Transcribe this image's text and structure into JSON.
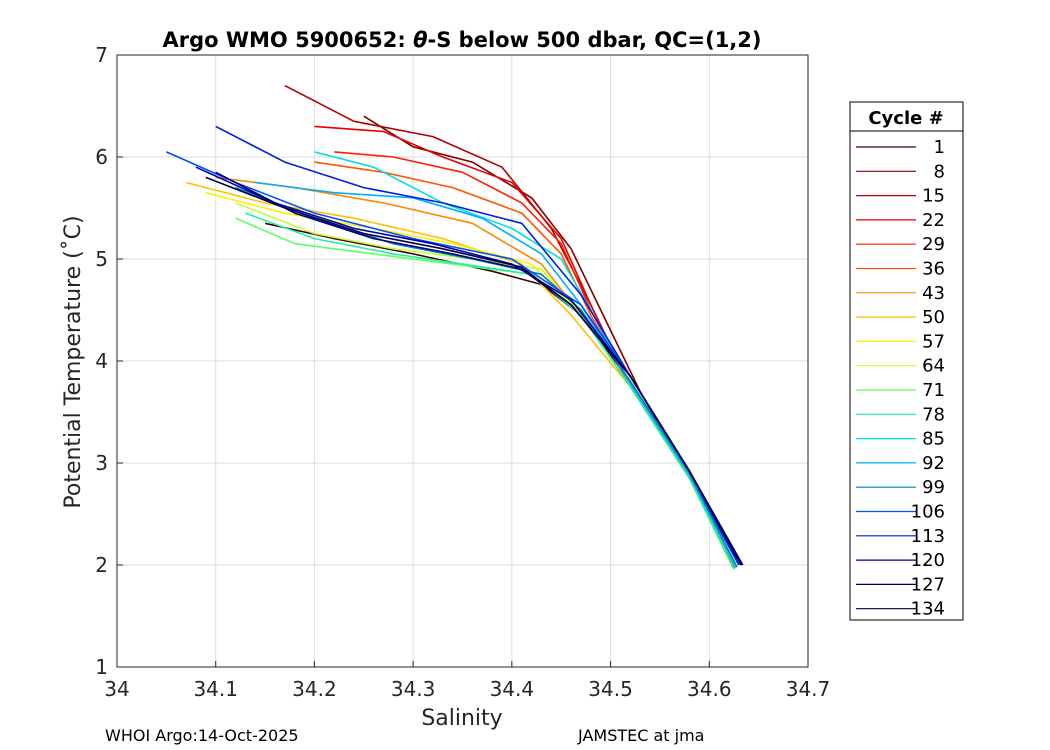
{
  "chart_data": {
    "type": "line",
    "title_prefix": "Argo WMO 5900652: ",
    "title_theta": "θ",
    "title_suffix": "-S below 500 dbar,  QC=(1,2)",
    "xlabel": "Salinity",
    "ylabel": "Potential Temperature (˚C)",
    "xlim": [
      34.0,
      34.7
    ],
    "ylim": [
      1,
      7
    ],
    "xticks": [
      "34",
      "34.1",
      "34.2",
      "34.3",
      "34.4",
      "34.5",
      "34.6",
      "34.7"
    ],
    "xtick_values": [
      34.0,
      34.1,
      34.2,
      34.3,
      34.4,
      34.5,
      34.6,
      34.7
    ],
    "yticks": [
      "1",
      "2",
      "3",
      "4",
      "5",
      "6",
      "7"
    ],
    "ytick_values": [
      1,
      2,
      3,
      4,
      5,
      6,
      7
    ],
    "grid": true,
    "legend_title": "Cycle #",
    "legend_position": "outside-right",
    "series": [
      {
        "name": "1",
        "color": "#400000",
        "salinity": [
          34.15,
          34.22,
          34.3,
          34.38,
          34.43,
          34.47,
          34.52,
          34.58,
          34.63
        ],
        "theta": [
          5.35,
          5.2,
          5.05,
          4.88,
          4.75,
          4.45,
          3.8,
          2.9,
          2.0
        ]
      },
      {
        "name": "8",
        "color": "#800000",
        "salinity": [
          34.25,
          34.3,
          34.36,
          34.42,
          34.46,
          34.49,
          34.53,
          34.58,
          34.625
        ],
        "theta": [
          6.4,
          6.1,
          5.95,
          5.6,
          5.1,
          4.5,
          3.7,
          2.85,
          1.98
        ]
      },
      {
        "name": "15",
        "color": "#B30000",
        "salinity": [
          34.17,
          34.24,
          34.32,
          34.39,
          34.44,
          34.48,
          34.52,
          34.58,
          34.625
        ],
        "theta": [
          6.7,
          6.35,
          6.2,
          5.9,
          5.3,
          4.55,
          3.75,
          2.85,
          1.97
        ]
      },
      {
        "name": "22",
        "color": "#E60000",
        "salinity": [
          34.2,
          34.27,
          34.33,
          34.4,
          34.45,
          34.48,
          34.52,
          34.58,
          34.625
        ],
        "theta": [
          6.3,
          6.25,
          6.0,
          5.75,
          5.2,
          4.55,
          3.75,
          2.85,
          1.97
        ]
      },
      {
        "name": "29",
        "color": "#FF2000",
        "salinity": [
          34.22,
          34.28,
          34.35,
          34.41,
          34.45,
          34.48,
          34.52,
          34.58,
          34.625
        ],
        "theta": [
          6.05,
          6.0,
          5.85,
          5.55,
          5.15,
          4.5,
          3.75,
          2.85,
          1.97
        ]
      },
      {
        "name": "36",
        "color": "#FF5500",
        "salinity": [
          34.2,
          34.27,
          34.34,
          34.41,
          34.45,
          34.48,
          34.52,
          34.58,
          34.625
        ],
        "theta": [
          5.95,
          5.85,
          5.7,
          5.45,
          5.05,
          4.45,
          3.75,
          2.85,
          1.96
        ]
      },
      {
        "name": "43",
        "color": "#FF8800",
        "salinity": [
          34.1,
          34.18,
          34.27,
          34.36,
          34.43,
          34.47,
          34.52,
          34.58,
          34.625
        ],
        "theta": [
          5.8,
          5.7,
          5.55,
          5.35,
          4.95,
          4.45,
          3.75,
          2.85,
          1.96
        ]
      },
      {
        "name": "50",
        "color": "#FFC000",
        "salinity": [
          34.07,
          34.15,
          34.24,
          34.33,
          34.41,
          34.46,
          34.52,
          34.58,
          34.625
        ],
        "theta": [
          5.75,
          5.55,
          5.4,
          5.2,
          4.95,
          4.45,
          3.75,
          2.85,
          1.96
        ]
      },
      {
        "name": "57",
        "color": "#FFF000",
        "salinity": [
          34.09,
          34.17,
          34.26,
          34.34,
          34.42,
          34.47,
          34.52,
          34.58,
          34.625
        ],
        "theta": [
          5.65,
          5.45,
          5.3,
          5.15,
          4.95,
          4.45,
          3.75,
          2.85,
          1.96
        ]
      },
      {
        "name": "64",
        "color": "#C0FF30",
        "salinity": [
          34.12,
          34.2,
          34.28,
          34.36,
          34.43,
          34.47,
          34.52,
          34.58,
          34.625
        ],
        "theta": [
          5.55,
          5.25,
          5.1,
          5.0,
          4.9,
          4.45,
          3.75,
          2.85,
          1.96
        ]
      },
      {
        "name": "71",
        "color": "#60FF60",
        "salinity": [
          34.12,
          34.18,
          34.26,
          34.34,
          34.42,
          34.47,
          34.52,
          34.58,
          34.625
        ],
        "theta": [
          5.4,
          5.15,
          5.05,
          4.95,
          4.85,
          4.45,
          3.75,
          2.85,
          1.96
        ]
      },
      {
        "name": "78",
        "color": "#20F0A0",
        "salinity": [
          34.13,
          34.2,
          34.28,
          34.35,
          34.42,
          34.47,
          34.52,
          34.58,
          34.625
        ],
        "theta": [
          5.45,
          5.2,
          5.05,
          4.95,
          4.85,
          4.45,
          3.75,
          2.85,
          1.96
        ]
      },
      {
        "name": "85",
        "color": "#00E0E0",
        "salinity": [
          34.2,
          34.26,
          34.33,
          34.4,
          34.45,
          34.48,
          34.52,
          34.58,
          34.627
        ],
        "theta": [
          6.05,
          5.9,
          5.55,
          5.3,
          5.0,
          4.5,
          3.78,
          2.88,
          1.97
        ]
      },
      {
        "name": "92",
        "color": "#00B0FF",
        "salinity": [
          34.14,
          34.22,
          34.3,
          34.37,
          34.43,
          34.47,
          34.52,
          34.58,
          34.628
        ],
        "theta": [
          5.75,
          5.65,
          5.6,
          5.4,
          5.05,
          4.55,
          3.78,
          2.88,
          1.98
        ]
      },
      {
        "name": "99",
        "color": "#0080C0",
        "salinity": [
          34.12,
          34.2,
          34.28,
          34.36,
          34.43,
          34.47,
          34.52,
          34.58,
          34.628
        ],
        "theta": [
          5.7,
          5.4,
          5.15,
          5.0,
          4.85,
          4.5,
          3.8,
          2.9,
          1.98
        ]
      },
      {
        "name": "106",
        "color": "#0050FF",
        "salinity": [
          34.05,
          34.12,
          34.2,
          34.3,
          34.4,
          34.47,
          34.52,
          34.58,
          34.63
        ],
        "theta": [
          6.05,
          5.75,
          5.45,
          5.2,
          5.0,
          4.55,
          3.85,
          2.92,
          2.0
        ]
      },
      {
        "name": "113",
        "color": "#0020E0",
        "salinity": [
          34.1,
          34.17,
          34.25,
          34.33,
          34.41,
          34.47,
          34.52,
          34.58,
          34.63
        ],
        "theta": [
          6.3,
          5.95,
          5.7,
          5.55,
          5.35,
          4.65,
          3.85,
          2.92,
          2.0
        ]
      },
      {
        "name": "120",
        "color": "#0000A0",
        "salinity": [
          34.08,
          34.16,
          34.24,
          34.32,
          34.4,
          34.46,
          34.52,
          34.58,
          34.632
        ],
        "theta": [
          5.9,
          5.55,
          5.3,
          5.15,
          4.95,
          4.6,
          3.85,
          2.92,
          2.0
        ]
      },
      {
        "name": "127",
        "color": "#000070",
        "salinity": [
          34.1,
          34.18,
          34.26,
          34.34,
          34.41,
          34.46,
          34.52,
          34.58,
          34.633
        ],
        "theta": [
          5.85,
          5.45,
          5.2,
          5.05,
          4.9,
          4.55,
          3.85,
          2.92,
          2.0
        ]
      },
      {
        "name": "134",
        "color": "#000050",
        "salinity": [
          34.09,
          34.17,
          34.25,
          34.33,
          34.41,
          34.46,
          34.52,
          34.58,
          34.634
        ],
        "theta": [
          5.8,
          5.5,
          5.25,
          5.1,
          4.92,
          4.55,
          3.85,
          2.92,
          2.0
        ]
      }
    ]
  },
  "footer": {
    "left": "WHOI Argo:14-Oct-2025",
    "right": "JAMSTEC at jma"
  }
}
